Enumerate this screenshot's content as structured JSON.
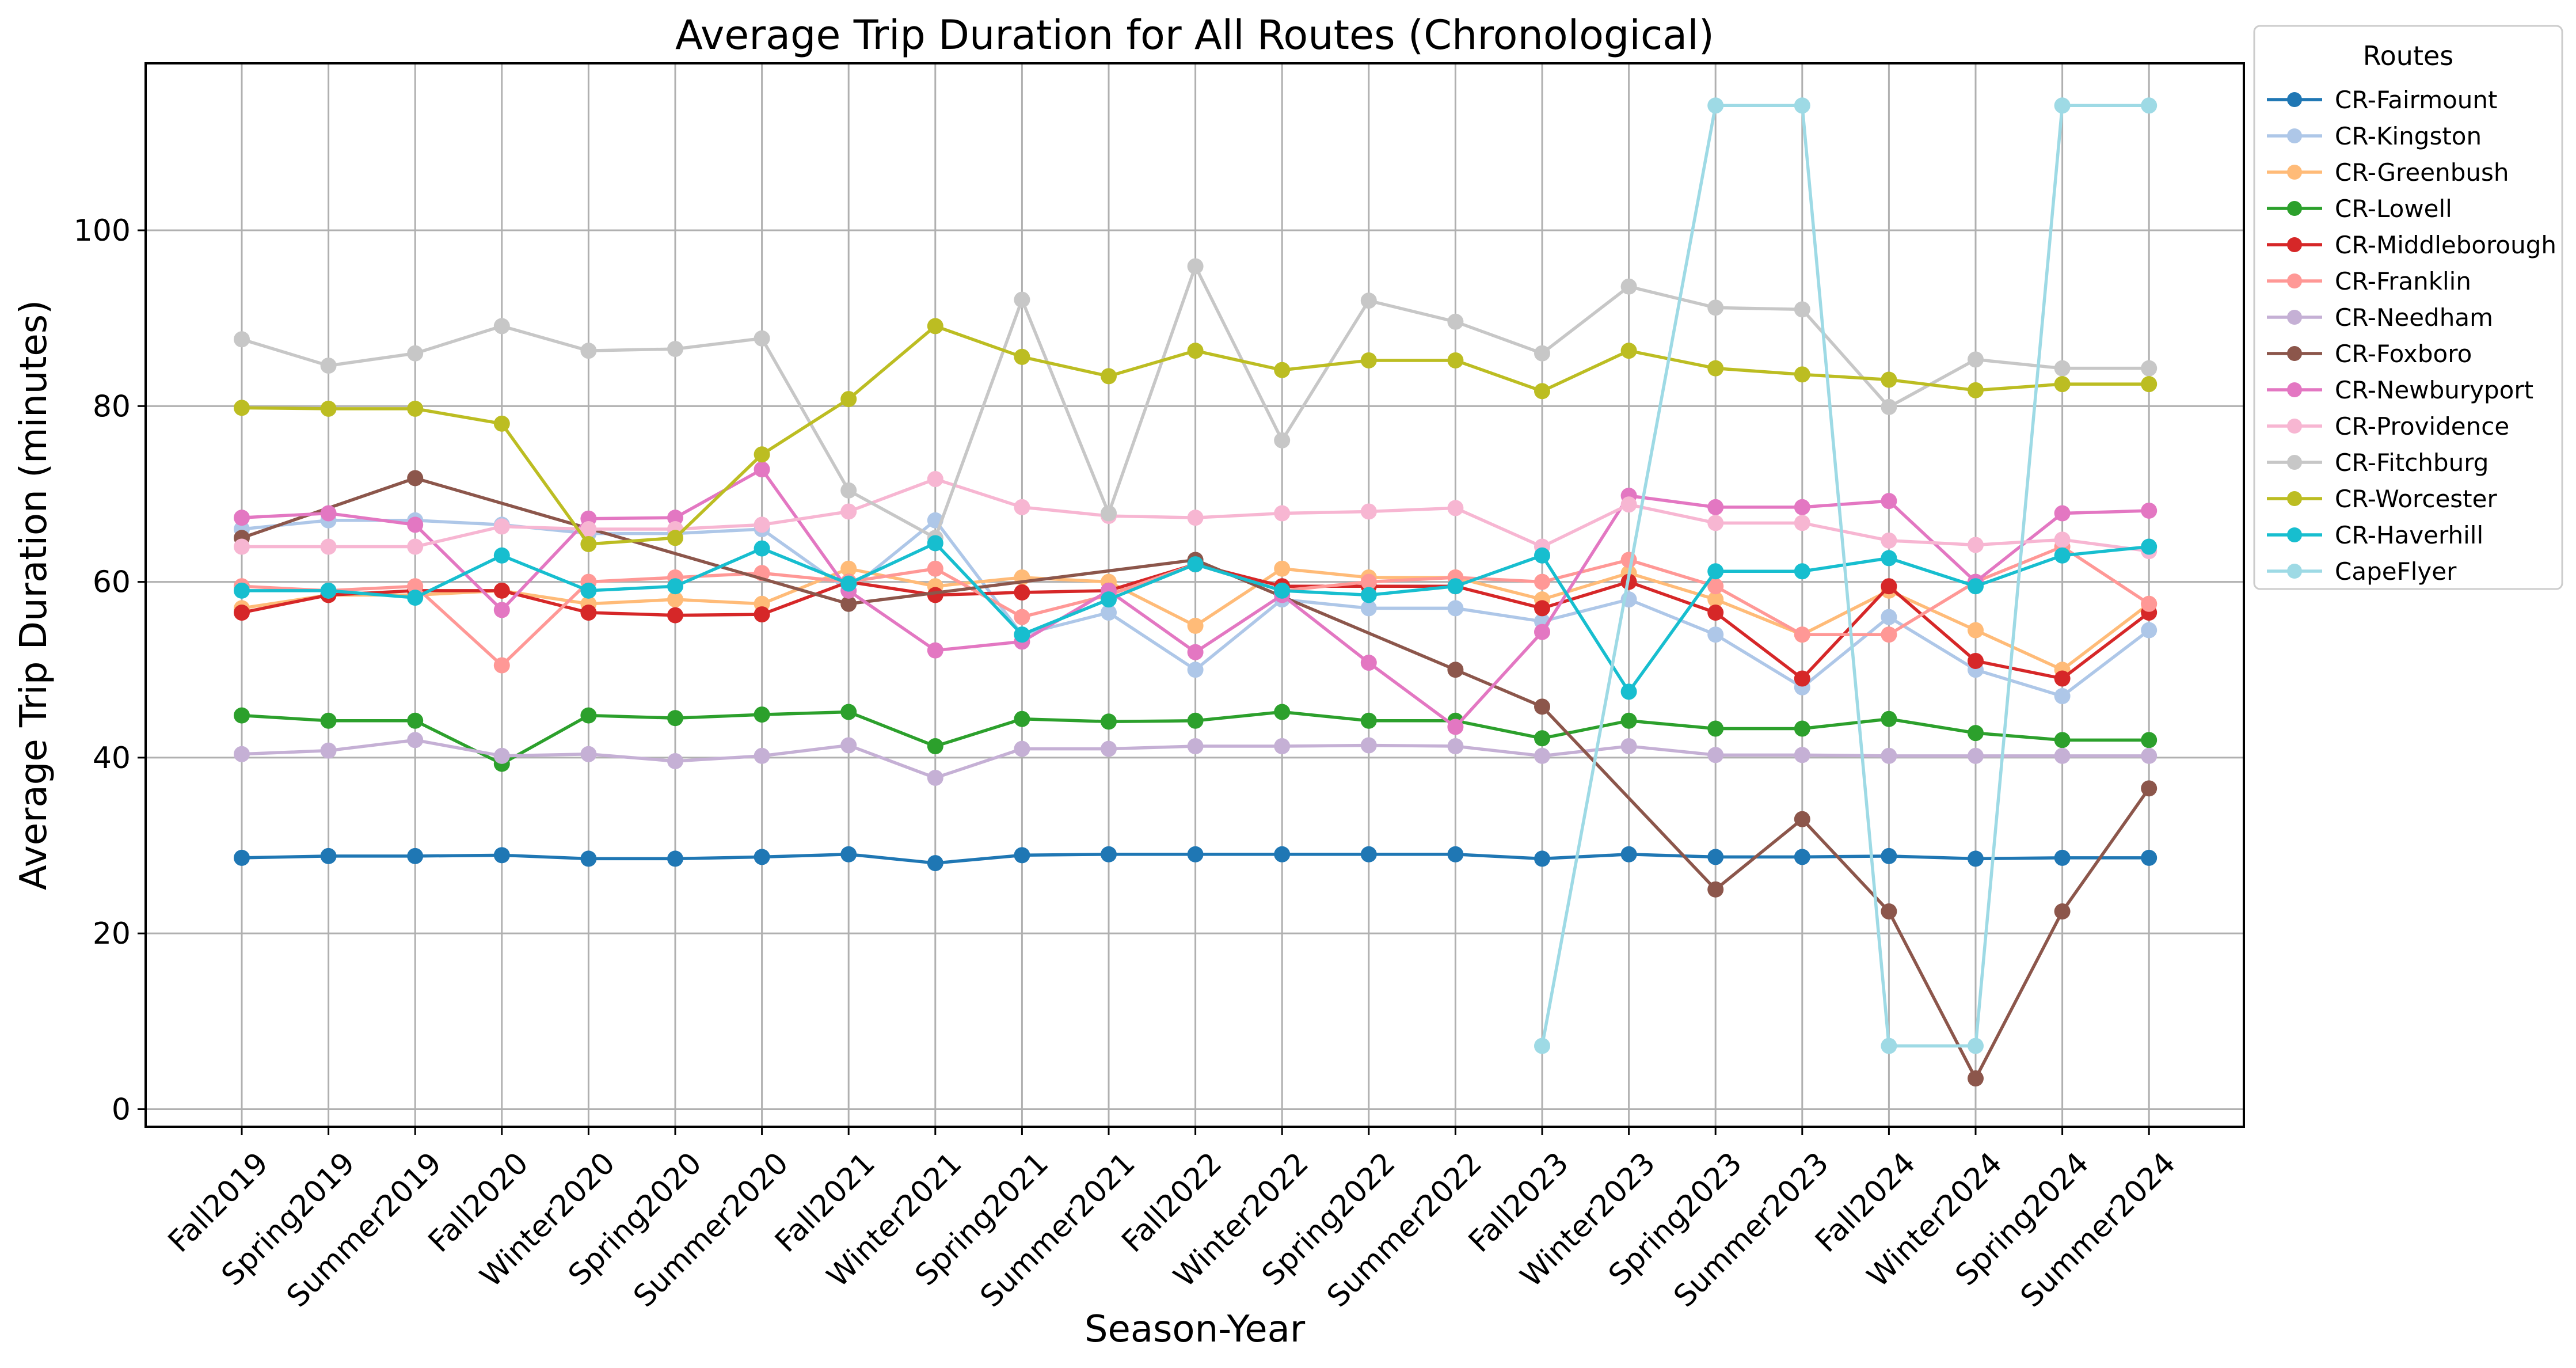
{
  "chart_data": {
    "type": "line",
    "title": "Average Trip Duration for All Routes (Chronological)",
    "xlabel": "Season-Year",
    "ylabel": "Average Trip Duration (minutes)",
    "ylim": [
      -2,
      119
    ],
    "yticks": [
      0,
      20,
      40,
      60,
      80,
      100
    ],
    "grid": true,
    "legend": {
      "title": "Routes",
      "placement": "outside-top-right"
    },
    "categories": [
      "Fall2019",
      "Spring2019",
      "Summer2019",
      "Fall2020",
      "Winter2020",
      "Spring2020",
      "Summer2020",
      "Fall2021",
      "Winter2021",
      "Spring2021",
      "Summer2021",
      "Fall2022",
      "Winter2022",
      "Spring2022",
      "Summer2022",
      "Fall2023",
      "Winter2023",
      "Spring2023",
      "Summer2023",
      "Fall2024",
      "Winter2024",
      "Spring2024",
      "Summer2024"
    ],
    "series": [
      {
        "name": "CR-Fairmount",
        "color": "#1f77b4",
        "values": [
          28.6,
          28.8,
          28.8,
          28.9,
          28.5,
          28.5,
          28.7,
          29.0,
          28.0,
          28.9,
          29.0,
          29.0,
          29.0,
          29.0,
          29.0,
          28.5,
          29.0,
          28.7,
          28.7,
          28.8,
          28.5,
          28.6,
          28.6
        ]
      },
      {
        "name": "CR-Kingston",
        "color": "#aec7e8",
        "values": [
          66.0,
          67.0,
          67.0,
          66.5,
          65.5,
          65.5,
          66.0,
          59.0,
          67.0,
          54.0,
          56.5,
          50.0,
          58.0,
          57.0,
          57.0,
          55.5,
          58.0,
          54.0,
          48.0,
          56.0,
          50.0,
          47.0,
          54.5
        ]
      },
      {
        "name": "CR-Greenbush",
        "color": "#ffbb78",
        "values": [
          57.0,
          58.5,
          58.5,
          59.0,
          57.5,
          58.0,
          57.5,
          61.5,
          59.5,
          60.5,
          60.0,
          55.0,
          61.5,
          60.5,
          60.5,
          58.0,
          61.0,
          58.0,
          54.0,
          59.0,
          54.5,
          50.0,
          57.5
        ]
      },
      {
        "name": "CR-Lowell",
        "color": "#2ca02c",
        "values": [
          44.8,
          44.2,
          44.2,
          39.3,
          44.8,
          44.5,
          44.9,
          45.2,
          41.3,
          44.4,
          44.1,
          44.2,
          45.2,
          44.2,
          44.2,
          42.2,
          44.2,
          43.3,
          43.3,
          44.4,
          42.8,
          42.0,
          42.0
        ]
      },
      {
        "name": "CR-Middleborough",
        "color": "#d62728",
        "values": [
          56.5,
          58.5,
          59.0,
          59.0,
          56.5,
          56.2,
          56.3,
          60.0,
          58.5,
          58.8,
          59.0,
          62.0,
          59.5,
          59.5,
          59.5,
          57.0,
          60.0,
          56.5,
          49.0,
          59.5,
          51.0,
          49.0,
          56.5
        ]
      },
      {
        "name": "CR-Franklin",
        "color": "#ff9896",
        "values": [
          59.5,
          59.0,
          59.5,
          50.5,
          60.0,
          60.5,
          61.0,
          60.0,
          61.5,
          56.0,
          58.5,
          62.0,
          59.0,
          60.0,
          60.5,
          60.0,
          62.5,
          59.5,
          54.0,
          54.0,
          60.0,
          64.0,
          57.5
        ]
      },
      {
        "name": "CR-Needham",
        "color": "#c5b0d5",
        "values": [
          40.4,
          40.8,
          42.0,
          40.2,
          40.4,
          39.6,
          40.2,
          41.4,
          37.7,
          41.0,
          41.0,
          41.3,
          41.3,
          41.4,
          41.3,
          40.2,
          41.3,
          40.3,
          40.3,
          40.2,
          40.2,
          40.2,
          40.2
        ]
      },
      {
        "name": "CR-Foxboro",
        "color": "#8c564b",
        "values": [
          65.0,
          null,
          71.8,
          null,
          null,
          null,
          null,
          57.5,
          null,
          null,
          null,
          62.5,
          null,
          null,
          50.0,
          45.8,
          null,
          25.0,
          33.0,
          22.5,
          3.5,
          22.5,
          36.5
        ]
      },
      {
        "name": "CR-Newburyport",
        "color": "#e377c2",
        "values": [
          67.3,
          67.8,
          66.5,
          56.8,
          67.2,
          67.3,
          72.8,
          59.0,
          52.2,
          53.2,
          59.0,
          52.0,
          58.5,
          50.8,
          43.5,
          54.3,
          69.8,
          68.5,
          68.5,
          69.2,
          60.0,
          67.8,
          68.1
        ]
      },
      {
        "name": "CR-Providence",
        "color": "#f7b6d2",
        "values": [
          64.0,
          64.0,
          64.0,
          66.3,
          66.0,
          66.0,
          66.5,
          68.0,
          71.7,
          68.5,
          67.5,
          67.3,
          67.8,
          68.0,
          68.4,
          64.0,
          68.8,
          66.7,
          66.7,
          64.7,
          64.2,
          64.8,
          63.5
        ]
      },
      {
        "name": "CR-Fitchburg",
        "color": "#c7c7c7",
        "values": [
          87.6,
          84.6,
          86.0,
          89.1,
          86.3,
          86.5,
          87.7,
          70.4,
          65.0,
          92.1,
          67.8,
          95.9,
          76.1,
          92.0,
          89.6,
          86.0,
          93.6,
          91.2,
          91.0,
          79.9,
          85.3,
          84.3,
          84.3
        ]
      },
      {
        "name": "CR-Worcester",
        "color": "#bcbd22",
        "values": [
          79.8,
          79.7,
          79.7,
          78.0,
          64.3,
          65.0,
          74.5,
          80.8,
          89.1,
          85.6,
          83.4,
          86.3,
          84.1,
          85.2,
          85.2,
          81.7,
          86.3,
          84.3,
          83.6,
          83.0,
          81.8,
          82.5,
          82.5
        ]
      },
      {
        "name": "CR-Haverhill",
        "color": "#17becf",
        "values": [
          59.0,
          59.0,
          58.2,
          63.0,
          59.0,
          59.5,
          63.8,
          59.8,
          64.4,
          54.0,
          58.0,
          62.0,
          59.0,
          58.5,
          59.5,
          63.0,
          47.5,
          61.2,
          61.2,
          62.7,
          59.5,
          63.0,
          64.0
        ]
      },
      {
        "name": "CapeFlyer",
        "color": "#9edae5",
        "values": [
          null,
          null,
          null,
          null,
          null,
          null,
          null,
          null,
          null,
          null,
          null,
          null,
          null,
          null,
          null,
          7.2,
          null,
          114.2,
          114.2,
          7.2,
          7.2,
          114.2,
          114.2
        ]
      }
    ]
  }
}
